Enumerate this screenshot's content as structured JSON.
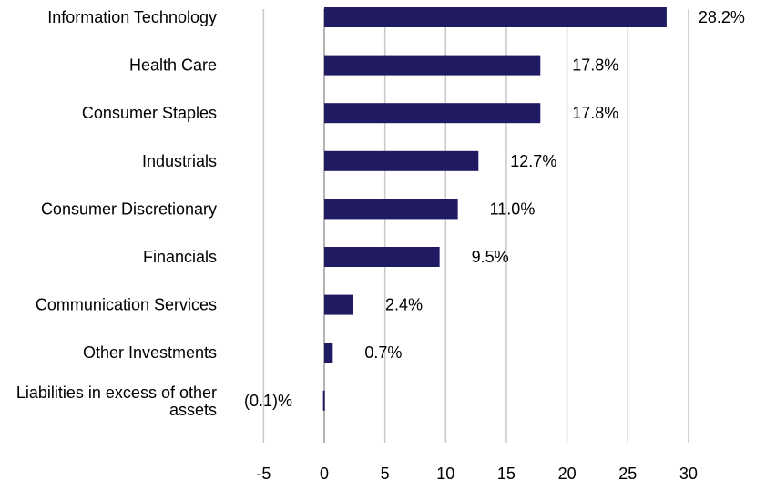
{
  "chart_data": {
    "type": "bar",
    "orientation": "horizontal",
    "title": "",
    "xlabel": "",
    "ylabel": "",
    "categories": [
      "Information Technology",
      "Health Care",
      "Consumer Staples",
      "Industrials",
      "Consumer Discretionary",
      "Financials",
      "Communication Services",
      "Other Investments",
      "Liabilities in excess of other assets"
    ],
    "values": [
      28.2,
      17.8,
      17.8,
      12.7,
      11.0,
      9.5,
      2.4,
      0.7,
      -0.1
    ],
    "data_labels": [
      "28.2%",
      "17.8%",
      "17.8%",
      "12.7%",
      "11.0%",
      "9.5%",
      "2.4%",
      "0.7%",
      "(0.1)%"
    ],
    "xlim": [
      -5,
      35
    ],
    "x_ticks": [
      -5,
      0,
      5,
      10,
      15,
      20,
      25,
      30
    ],
    "x_tick_labels": [
      "-5",
      "0",
      "5",
      "10",
      "15",
      "20",
      "25",
      "30"
    ],
    "grid": "vertical",
    "legend": "none",
    "colors": {
      "bar": "#201a62",
      "grid": "#c8c8c8",
      "text": "#000000"
    }
  }
}
